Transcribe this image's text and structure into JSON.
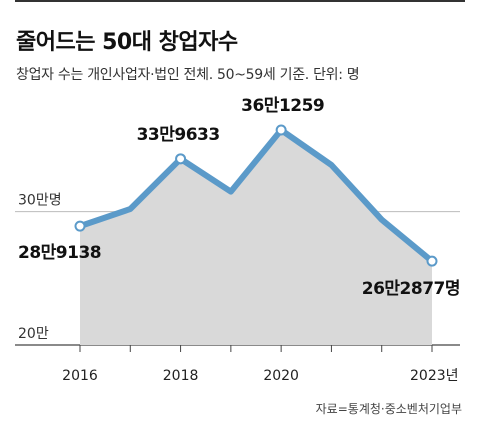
{
  "title": "줄어드는 50대 창업자수",
  "subtitle": "창업자 수는 개인사업자·법인 전체. 50~59세 기준. 단위: 명",
  "source": "자료=통계청·중소벤처기업부",
  "chart_data": {
    "type": "area",
    "x": [
      2016,
      2017,
      2018,
      2019,
      2020,
      2021,
      2022,
      2023
    ],
    "values": [
      289138,
      302000,
      339633,
      315000,
      361259,
      335000,
      294000,
      262877
    ],
    "x_tick_labels": [
      "2016",
      "2018",
      "2020",
      "2023년"
    ],
    "x_tick_values": [
      2016,
      2018,
      2020,
      2023
    ],
    "y_tick_labels": [
      "20만",
      "30만명"
    ],
    "y_tick_values": [
      200000,
      300000
    ],
    "ylim": [
      200000,
      380000
    ],
    "labeled_points": [
      {
        "x": 2016,
        "label": "28만9138"
      },
      {
        "x": 2018,
        "label": "33만9633"
      },
      {
        "x": 2020,
        "label": "36만1259"
      },
      {
        "x": 2023,
        "label": "26만2877명"
      }
    ],
    "colors": {
      "line": "#5b9ac9",
      "area": "#d9d9d9",
      "marker_fill": "#ffffff"
    },
    "grid": "horizontal"
  }
}
